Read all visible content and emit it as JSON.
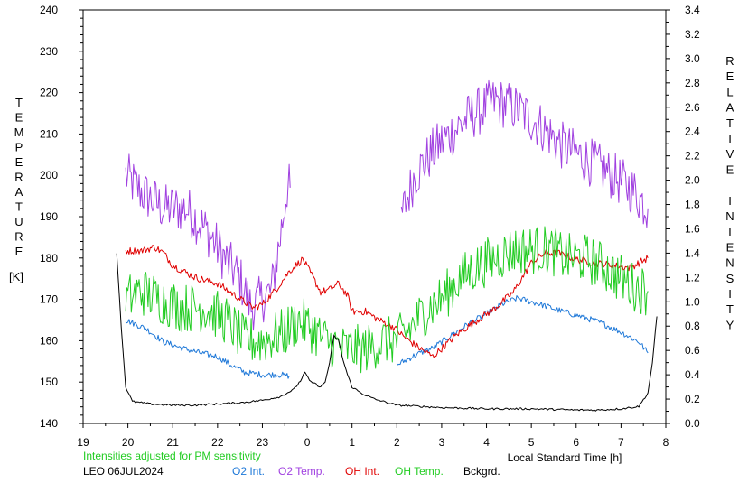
{
  "chart_data": {
    "type": "line",
    "xlabel": "Local Standard Time [h]",
    "ylabel_left": "TEMPERATURE",
    "ylabel_left_unit": "[K]",
    "ylabel_right": "RELATIVE INTENSITY",
    "x_tick_labels": [
      "19",
      "20",
      "21",
      "22",
      "23",
      "0",
      "1",
      "2",
      "3",
      "4",
      "5",
      "6",
      "7",
      "8"
    ],
    "x_tick_hours": [
      19,
      20,
      21,
      22,
      23,
      24,
      25,
      26,
      27,
      28,
      29,
      30,
      31,
      32
    ],
    "xlim": [
      19,
      32
    ],
    "ylim_left": [
      140,
      240
    ],
    "y_left_ticks": [
      "140",
      "150",
      "160",
      "170",
      "180",
      "190",
      "200",
      "210",
      "220",
      "230",
      "240"
    ],
    "ylim_right": [
      0,
      3.4
    ],
    "y_right_ticks": [
      "0.0",
      "0.2",
      "0.4",
      "0.6",
      "0.8",
      "1.0",
      "1.2",
      "1.4",
      "1.6",
      "1.8",
      "2.0",
      "2.2",
      "2.4",
      "2.6",
      "2.8",
      "3.0",
      "3.2",
      "3.4"
    ],
    "grid": false,
    "series": [
      {
        "name": "O2 Temp.",
        "axis": "left",
        "color": "#a040e0",
        "style": "noisy",
        "noise": 6,
        "points": [
          [
            19.95,
            200
          ],
          [
            20.3,
            196
          ],
          [
            20.8,
            192
          ],
          [
            21.3,
            192
          ],
          [
            21.8,
            186
          ],
          [
            22.15,
            180
          ],
          [
            22.5,
            175
          ],
          [
            22.75,
            168
          ],
          [
            23.2,
            172
          ],
          [
            23.4,
            185
          ],
          [
            23.55,
            197
          ],
          [
            23.62,
            197
          ],
          null,
          [
            26.1,
            190
          ],
          [
            26.4,
            200
          ],
          [
            26.75,
            205
          ],
          [
            27.0,
            208
          ],
          [
            27.6,
            214
          ],
          [
            28.2,
            218
          ],
          [
            28.7,
            216
          ],
          [
            29.2,
            212
          ],
          [
            29.7,
            207
          ],
          [
            30.2,
            204
          ],
          [
            30.8,
            200
          ],
          [
            31.3,
            196
          ],
          [
            31.6,
            192
          ]
        ]
      },
      {
        "name": "O2 Int.",
        "axis": "right",
        "color": "#1e78d8",
        "style": "noisy",
        "noise": 0.025,
        "points": [
          [
            19.95,
            0.85
          ],
          [
            20.4,
            0.78
          ],
          [
            20.8,
            0.67
          ],
          [
            21.2,
            0.62
          ],
          [
            21.6,
            0.58
          ],
          [
            22.0,
            0.55
          ],
          [
            22.3,
            0.48
          ],
          [
            22.6,
            0.42
          ],
          [
            23.0,
            0.4
          ],
          [
            23.4,
            0.4
          ],
          [
            23.6,
            0.39
          ],
          null,
          [
            26.0,
            0.48
          ],
          [
            26.4,
            0.56
          ],
          [
            26.8,
            0.62
          ],
          [
            27.2,
            0.72
          ],
          [
            27.6,
            0.82
          ],
          [
            28.0,
            0.9
          ],
          [
            28.4,
            0.99
          ],
          [
            28.7,
            1.03
          ],
          [
            29.2,
            0.98
          ],
          [
            29.7,
            0.92
          ],
          [
            30.2,
            0.87
          ],
          [
            30.6,
            0.82
          ],
          [
            31.0,
            0.75
          ],
          [
            31.4,
            0.67
          ],
          [
            31.6,
            0.58
          ]
        ]
      },
      {
        "name": "OH Int.",
        "axis": "right",
        "color": "#e00000",
        "style": "noisy",
        "noise": 0.03,
        "points": [
          [
            19.95,
            1.42
          ],
          [
            20.3,
            1.42
          ],
          [
            20.6,
            1.45
          ],
          [
            20.8,
            1.4
          ],
          [
            21.0,
            1.3
          ],
          [
            21.5,
            1.2
          ],
          [
            22.0,
            1.15
          ],
          [
            22.4,
            1.05
          ],
          [
            22.8,
            0.95
          ],
          [
            23.0,
            0.98
          ],
          [
            23.3,
            1.1
          ],
          [
            23.6,
            1.25
          ],
          [
            23.9,
            1.35
          ],
          [
            24.1,
            1.22
          ],
          [
            24.3,
            1.08
          ],
          [
            24.5,
            1.1
          ],
          [
            24.7,
            1.15
          ],
          [
            24.9,
            1.05
          ],
          [
            25.0,
            0.92
          ],
          [
            25.3,
            0.92
          ],
          [
            25.6,
            0.85
          ],
          [
            25.9,
            0.8
          ],
          [
            26.2,
            0.7
          ],
          [
            26.5,
            0.62
          ],
          [
            26.8,
            0.55
          ],
          [
            27.1,
            0.65
          ],
          [
            27.4,
            0.75
          ],
          [
            27.8,
            0.85
          ],
          [
            28.2,
            0.95
          ],
          [
            28.6,
            1.08
          ],
          [
            29.0,
            1.32
          ],
          [
            29.3,
            1.4
          ],
          [
            29.6,
            1.4
          ],
          [
            30.0,
            1.35
          ],
          [
            30.4,
            1.32
          ],
          [
            30.8,
            1.3
          ],
          [
            31.2,
            1.28
          ],
          [
            31.6,
            1.36
          ]
        ]
      },
      {
        "name": "OH Temp.",
        "axis": "left",
        "color": "#22cc22",
        "style": "noisy",
        "noise": 6,
        "points": [
          [
            19.95,
            170
          ],
          [
            20.3,
            172
          ],
          [
            20.7,
            170
          ],
          [
            21.2,
            168
          ],
          [
            21.7,
            168
          ],
          [
            22.2,
            165
          ],
          [
            22.6,
            160
          ],
          [
            23.0,
            160
          ],
          [
            23.5,
            162
          ],
          [
            23.8,
            165
          ],
          [
            24.1,
            163
          ],
          [
            24.4,
            160
          ],
          [
            24.8,
            158
          ],
          [
            25.3,
            158
          ],
          [
            25.7,
            160
          ],
          [
            26.0,
            160
          ],
          [
            26.3,
            163
          ],
          [
            26.7,
            168
          ],
          [
            27.0,
            170
          ],
          [
            27.4,
            175
          ],
          [
            27.8,
            178
          ],
          [
            28.2,
            180
          ],
          [
            28.6,
            182
          ],
          [
            29.0,
            182
          ],
          [
            29.4,
            182
          ],
          [
            29.8,
            180
          ],
          [
            30.2,
            180
          ],
          [
            30.6,
            178
          ],
          [
            31.0,
            175
          ],
          [
            31.3,
            173
          ],
          [
            31.6,
            172
          ]
        ]
      },
      {
        "name": "Bckgrd.",
        "axis": "right",
        "color": "#000000",
        "style": "smooth",
        "noise": 0.008,
        "points": [
          [
            19.75,
            1.4
          ],
          [
            19.85,
            0.8
          ],
          [
            19.95,
            0.3
          ],
          [
            20.1,
            0.18
          ],
          [
            20.5,
            0.16
          ],
          [
            21.0,
            0.15
          ],
          [
            21.5,
            0.15
          ],
          [
            22.0,
            0.16
          ],
          [
            22.5,
            0.17
          ],
          [
            23.0,
            0.19
          ],
          [
            23.4,
            0.22
          ],
          [
            23.7,
            0.28
          ],
          [
            23.85,
            0.35
          ],
          [
            23.95,
            0.42
          ],
          [
            24.05,
            0.35
          ],
          [
            24.2,
            0.32
          ],
          [
            24.3,
            0.3
          ],
          [
            24.4,
            0.34
          ],
          [
            24.5,
            0.5
          ],
          [
            24.6,
            0.72
          ],
          [
            24.7,
            0.68
          ],
          [
            24.8,
            0.52
          ],
          [
            24.9,
            0.4
          ],
          [
            25.0,
            0.3
          ],
          [
            25.2,
            0.25
          ],
          [
            25.5,
            0.2
          ],
          [
            26.0,
            0.15
          ],
          [
            26.5,
            0.14
          ],
          [
            27.0,
            0.13
          ],
          [
            28.0,
            0.12
          ],
          [
            29.0,
            0.12
          ],
          [
            30.0,
            0.11
          ],
          [
            30.5,
            0.11
          ],
          [
            31.0,
            0.12
          ],
          [
            31.4,
            0.14
          ],
          [
            31.6,
            0.25
          ],
          [
            31.7,
            0.5
          ],
          [
            31.8,
            0.88
          ]
        ]
      }
    ]
  },
  "footer": {
    "note": "Intensities adjusted for PM sensitivity",
    "station": "LEO 06JUL2024"
  }
}
